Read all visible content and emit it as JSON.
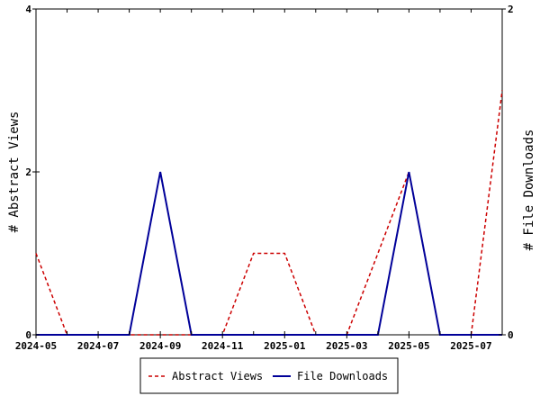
{
  "chart_data": {
    "type": "line",
    "x": [
      "2024-05",
      "2024-06",
      "2024-07",
      "2024-08",
      "2024-09",
      "2024-10",
      "2024-11",
      "2024-12",
      "2025-01",
      "2025-02",
      "2025-03",
      "2025-04",
      "2025-05",
      "2025-06",
      "2025-07",
      "2025-08"
    ],
    "x_tick_labels": [
      "2024-05",
      "2024-07",
      "2024-09",
      "2024-11",
      "2025-01",
      "2025-03",
      "2025-05",
      "2025-07"
    ],
    "series": [
      {
        "name": "Abstract Views",
        "axis": "left",
        "color": "#cc0000",
        "dash": true,
        "values": [
          1,
          0,
          0,
          0,
          0,
          0,
          0,
          1,
          1,
          0,
          0,
          1,
          2,
          0,
          0,
          3
        ]
      },
      {
        "name": "File Downloads",
        "axis": "right",
        "color": "#000099",
        "dash": false,
        "values": [
          0,
          0,
          0,
          0,
          1,
          0,
          0,
          0,
          0,
          0,
          0,
          0,
          1,
          0,
          0,
          0
        ]
      }
    ],
    "ylabel_left": "# Abstract Views",
    "ylabel_right": "# File Downloads",
    "ylim_left": [
      0,
      4
    ],
    "ylim_right": [
      0,
      2
    ],
    "yticks_left": [
      "0",
      "2",
      "4"
    ],
    "yticks_right": [
      "0",
      "2"
    ],
    "legend_placement": "bottom-center",
    "grid": false
  }
}
